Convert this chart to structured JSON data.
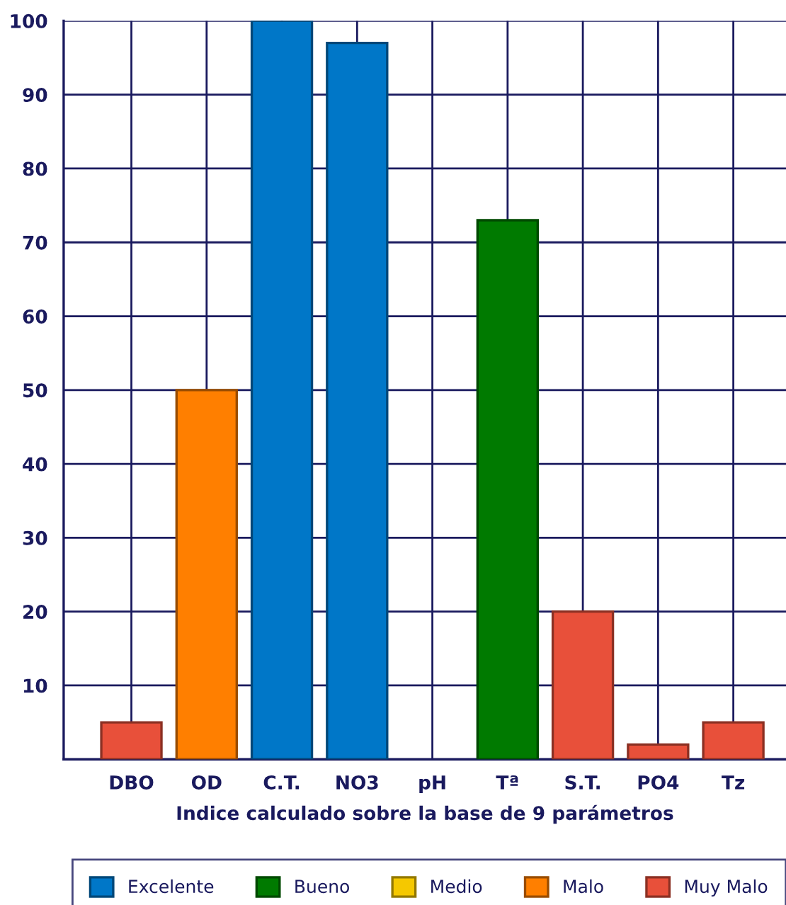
{
  "chart_data": {
    "type": "bar",
    "xlabel": "Indice calculado sobre la base de 9 parámetros",
    "categories": [
      "DBO",
      "OD",
      "C.T.",
      "NO3",
      "pH",
      "Tª",
      "S.T.",
      "PO4",
      "Tz"
    ],
    "series": [
      {
        "name": "Excelente",
        "color": "#0077c8",
        "values": [
          null,
          null,
          100,
          97,
          null,
          null,
          null,
          null,
          null
        ]
      },
      {
        "name": "Bueno",
        "color": "#007a00",
        "values": [
          null,
          null,
          null,
          null,
          null,
          73,
          null,
          null,
          null
        ]
      },
      {
        "name": "Medio",
        "color": "#f5c800",
        "values": [
          null,
          null,
          null,
          null,
          null,
          null,
          null,
          null,
          null
        ]
      },
      {
        "name": "Malo",
        "color": "#ff7f00",
        "values": [
          null,
          50,
          null,
          null,
          null,
          null,
          null,
          null,
          null
        ]
      },
      {
        "name": "Muy Malo",
        "color": "#e8503a",
        "values": [
          5,
          null,
          null,
          null,
          null,
          null,
          20,
          2,
          5
        ]
      }
    ],
    "ylim": [
      0,
      100
    ],
    "yticks": [
      10,
      20,
      30,
      40,
      50,
      60,
      70,
      80,
      90,
      100
    ],
    "grid": true,
    "legend": "bottom"
  }
}
